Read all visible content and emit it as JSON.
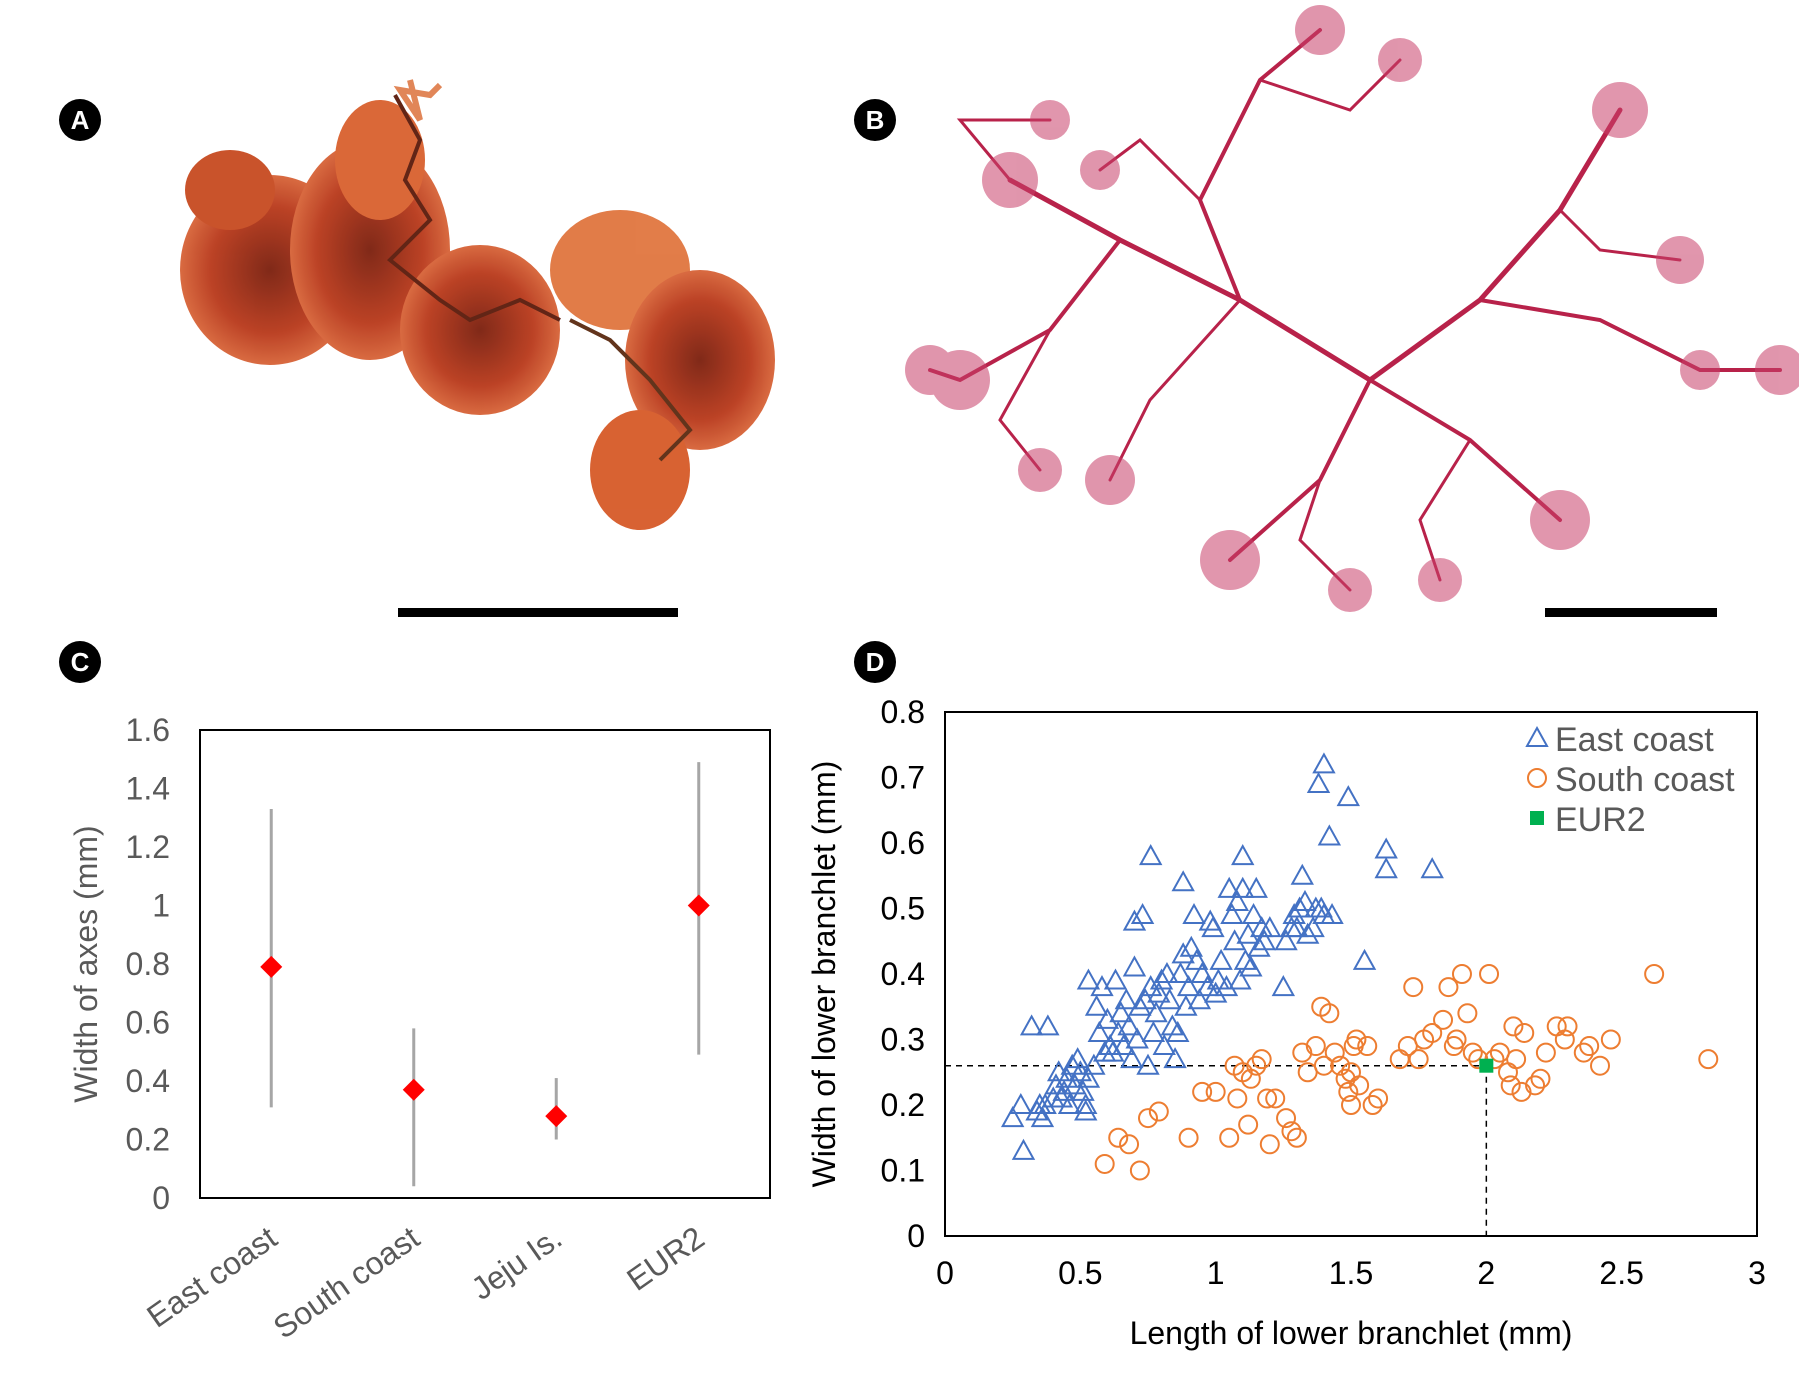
{
  "panels": {
    "a": {
      "label": "A"
    },
    "b": {
      "label": "B"
    },
    "c": {
      "label": "C"
    },
    "d": {
      "label": "D"
    }
  },
  "colors": {
    "seaweed_a": "#c8431e",
    "seaweed_b": "#b8224a",
    "marker_c": "#ff0000",
    "errorbar_c": "#a6a6a6",
    "east": "#4472c4",
    "south": "#ed7d31",
    "eur2": "#00b050"
  },
  "chart_data": [
    {
      "type": "scatter",
      "panel": "C",
      "categories": [
        "East coast",
        "South coast",
        "Jeju Is.",
        "EUR2"
      ],
      "values": [
        0.79,
        0.37,
        0.28,
        1.0
      ],
      "error_low": [
        0.31,
        0.04,
        0.2,
        0.49
      ],
      "error_high": [
        1.33,
        0.58,
        0.41,
        1.49
      ],
      "ylabel": "Width of axes (mm)",
      "ylim": [
        0,
        1.6
      ],
      "yticks": [
        "0",
        "0.2",
        "0.4",
        "0.6",
        "0.8",
        "1",
        "1.2",
        "1.4",
        "1.6"
      ],
      "marker": "diamond",
      "grid": false
    },
    {
      "type": "scatter",
      "panel": "D",
      "xlabel": "Length of lower branchlet (mm)",
      "ylabel": "Width of lower branchlet (mm)",
      "xlim": [
        0,
        3
      ],
      "ylim": [
        0,
        0.8
      ],
      "xticks": [
        "0",
        "0.5",
        "1",
        "1.5",
        "2",
        "2.5",
        "3"
      ],
      "yticks": [
        "0",
        "0.1",
        "0.2",
        "0.3",
        "0.4",
        "0.5",
        "0.6",
        "0.7",
        "0.8"
      ],
      "legend_position": "top-right",
      "grid": false,
      "reference": {
        "x": 2.0,
        "y": 0.26
      },
      "series": [
        {
          "name": "East coast",
          "marker": "triangle",
          "points": [
            [
              0.25,
              0.18
            ],
            [
              0.28,
              0.2
            ],
            [
              0.29,
              0.13
            ],
            [
              0.32,
              0.32
            ],
            [
              0.34,
              0.19
            ],
            [
              0.35,
              0.2
            ],
            [
              0.36,
              0.18
            ],
            [
              0.37,
              0.2
            ],
            [
              0.38,
              0.32
            ],
            [
              0.4,
              0.21
            ],
            [
              0.41,
              0.23
            ],
            [
              0.42,
              0.25
            ],
            [
              0.43,
              0.21
            ],
            [
              0.44,
              0.22
            ],
            [
              0.45,
              0.24
            ],
            [
              0.46,
              0.2
            ],
            [
              0.47,
              0.26
            ],
            [
              0.48,
              0.23
            ],
            [
              0.49,
              0.27
            ],
            [
              0.5,
              0.25
            ],
            [
              0.51,
              0.22
            ],
            [
              0.52,
              0.19
            ],
            [
              0.52,
              0.2
            ],
            [
              0.53,
              0.24
            ],
            [
              0.53,
              0.39
            ],
            [
              0.55,
              0.26
            ],
            [
              0.56,
              0.35
            ],
            [
              0.57,
              0.31
            ],
            [
              0.58,
              0.38
            ],
            [
              0.59,
              0.28
            ],
            [
              0.6,
              0.33
            ],
            [
              0.61,
              0.29
            ],
            [
              0.62,
              0.28
            ],
            [
              0.63,
              0.39
            ],
            [
              0.64,
              0.31
            ],
            [
              0.65,
              0.34
            ],
            [
              0.66,
              0.29
            ],
            [
              0.67,
              0.36
            ],
            [
              0.68,
              0.32
            ],
            [
              0.69,
              0.27
            ],
            [
              0.7,
              0.41
            ],
            [
              0.7,
              0.48
            ],
            [
              0.71,
              0.3
            ],
            [
              0.72,
              0.35
            ],
            [
              0.73,
              0.49
            ],
            [
              0.74,
              0.36
            ],
            [
              0.75,
              0.26
            ],
            [
              0.76,
              0.38
            ],
            [
              0.76,
              0.58
            ],
            [
              0.77,
              0.31
            ],
            [
              0.78,
              0.34
            ],
            [
              0.79,
              0.37
            ],
            [
              0.8,
              0.39
            ],
            [
              0.81,
              0.29
            ],
            [
              0.82,
              0.4
            ],
            [
              0.83,
              0.36
            ],
            [
              0.84,
              0.32
            ],
            [
              0.85,
              0.27
            ],
            [
              0.86,
              0.31
            ],
            [
              0.87,
              0.4
            ],
            [
              0.88,
              0.43
            ],
            [
              0.88,
              0.54
            ],
            [
              0.89,
              0.35
            ],
            [
              0.9,
              0.38
            ],
            [
              0.91,
              0.44
            ],
            [
              0.92,
              0.49
            ],
            [
              0.93,
              0.42
            ],
            [
              0.94,
              0.36
            ],
            [
              0.95,
              0.4
            ],
            [
              0.97,
              0.38
            ],
            [
              0.98,
              0.48
            ],
            [
              0.99,
              0.47
            ],
            [
              1.0,
              0.37
            ],
            [
              1.01,
              0.39
            ],
            [
              1.02,
              0.42
            ],
            [
              1.04,
              0.38
            ],
            [
              1.05,
              0.53
            ],
            [
              1.06,
              0.49
            ],
            [
              1.07,
              0.45
            ],
            [
              1.08,
              0.51
            ],
            [
              1.09,
              0.39
            ],
            [
              1.1,
              0.53
            ],
            [
              1.1,
              0.58
            ],
            [
              1.11,
              0.42
            ],
            [
              1.12,
              0.46
            ],
            [
              1.13,
              0.41
            ],
            [
              1.14,
              0.49
            ],
            [
              1.15,
              0.53
            ],
            [
              1.16,
              0.44
            ],
            [
              1.17,
              0.47
            ],
            [
              1.18,
              0.45
            ],
            [
              1.2,
              0.47
            ],
            [
              1.25,
              0.38
            ],
            [
              1.26,
              0.45
            ],
            [
              1.28,
              0.47
            ],
            [
              1.29,
              0.49
            ],
            [
              1.3,
              0.47
            ],
            [
              1.31,
              0.5
            ],
            [
              1.32,
              0.55
            ],
            [
              1.33,
              0.51
            ],
            [
              1.34,
              0.46
            ],
            [
              1.36,
              0.47
            ],
            [
              1.37,
              0.5
            ],
            [
              1.38,
              0.69
            ],
            [
              1.39,
              0.5
            ],
            [
              1.4,
              0.49
            ],
            [
              1.4,
              0.72
            ],
            [
              1.42,
              0.61
            ],
            [
              1.43,
              0.49
            ],
            [
              1.49,
              0.67
            ],
            [
              1.55,
              0.42
            ],
            [
              1.63,
              0.56
            ],
            [
              1.63,
              0.59
            ],
            [
              1.8,
              0.56
            ]
          ]
        },
        {
          "name": "South coast",
          "marker": "circle",
          "points": [
            [
              0.59,
              0.11
            ],
            [
              0.64,
              0.15
            ],
            [
              0.68,
              0.14
            ],
            [
              0.72,
              0.1
            ],
            [
              0.75,
              0.18
            ],
            [
              0.79,
              0.19
            ],
            [
              0.9,
              0.15
            ],
            [
              0.95,
              0.22
            ],
            [
              1.0,
              0.22
            ],
            [
              1.05,
              0.15
            ],
            [
              1.07,
              0.26
            ],
            [
              1.08,
              0.21
            ],
            [
              1.1,
              0.25
            ],
            [
              1.12,
              0.17
            ],
            [
              1.13,
              0.24
            ],
            [
              1.15,
              0.26
            ],
            [
              1.17,
              0.27
            ],
            [
              1.19,
              0.21
            ],
            [
              1.2,
              0.14
            ],
            [
              1.22,
              0.21
            ],
            [
              1.26,
              0.18
            ],
            [
              1.28,
              0.16
            ],
            [
              1.3,
              0.15
            ],
            [
              1.32,
              0.28
            ],
            [
              1.34,
              0.25
            ],
            [
              1.37,
              0.29
            ],
            [
              1.39,
              0.35
            ],
            [
              1.4,
              0.26
            ],
            [
              1.42,
              0.34
            ],
            [
              1.44,
              0.28
            ],
            [
              1.46,
              0.26
            ],
            [
              1.48,
              0.24
            ],
            [
              1.49,
              0.22
            ],
            [
              1.5,
              0.2
            ],
            [
              1.5,
              0.25
            ],
            [
              1.51,
              0.29
            ],
            [
              1.52,
              0.3
            ],
            [
              1.53,
              0.23
            ],
            [
              1.56,
              0.29
            ],
            [
              1.58,
              0.2
            ],
            [
              1.6,
              0.21
            ],
            [
              1.68,
              0.27
            ],
            [
              1.71,
              0.29
            ],
            [
              1.73,
              0.38
            ],
            [
              1.75,
              0.27
            ],
            [
              1.77,
              0.3
            ],
            [
              1.8,
              0.31
            ],
            [
              1.84,
              0.33
            ],
            [
              1.86,
              0.38
            ],
            [
              1.88,
              0.29
            ],
            [
              1.89,
              0.3
            ],
            [
              1.91,
              0.4
            ],
            [
              1.93,
              0.34
            ],
            [
              1.95,
              0.28
            ],
            [
              1.97,
              0.27
            ],
            [
              2.01,
              0.4
            ],
            [
              2.03,
              0.27
            ],
            [
              2.05,
              0.28
            ],
            [
              2.08,
              0.25
            ],
            [
              2.09,
              0.23
            ],
            [
              2.1,
              0.32
            ],
            [
              2.11,
              0.27
            ],
            [
              2.13,
              0.22
            ],
            [
              2.14,
              0.31
            ],
            [
              2.18,
              0.23
            ],
            [
              2.2,
              0.24
            ],
            [
              2.22,
              0.28
            ],
            [
              2.26,
              0.32
            ],
            [
              2.29,
              0.3
            ],
            [
              2.3,
              0.32
            ],
            [
              2.36,
              0.28
            ],
            [
              2.38,
              0.29
            ],
            [
              2.42,
              0.26
            ],
            [
              2.46,
              0.3
            ],
            [
              2.62,
              0.4
            ],
            [
              2.82,
              0.27
            ]
          ]
        },
        {
          "name": "EUR2",
          "marker": "square",
          "points": [
            [
              2.0,
              0.26
            ]
          ]
        }
      ]
    }
  ]
}
